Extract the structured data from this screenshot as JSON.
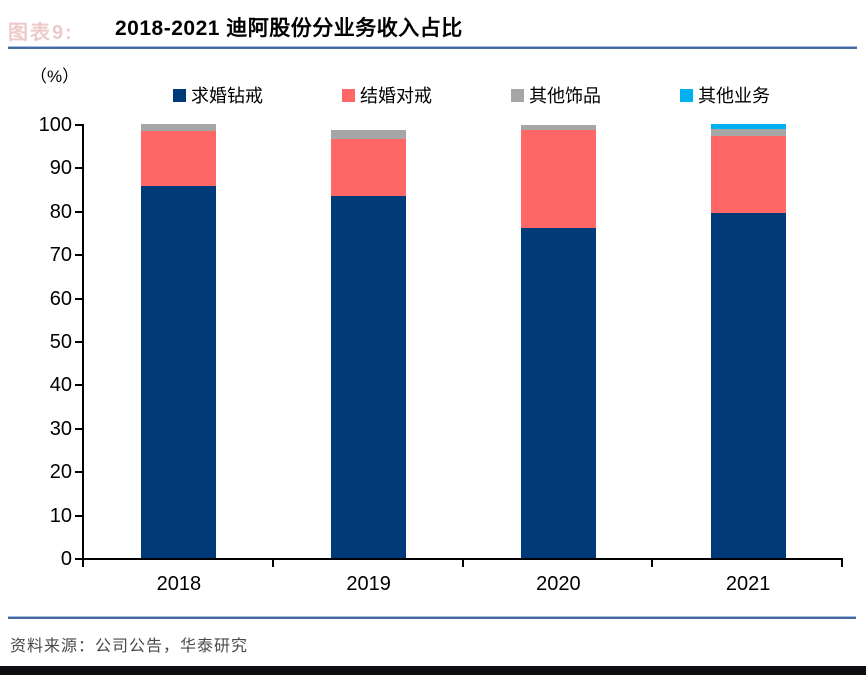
{
  "header": {
    "figure_label": "图表9:",
    "title": "2018-2021 迪阿股份分业务收入占比"
  },
  "chart_data": {
    "type": "bar",
    "stacked": true,
    "title": "2018-2021 迪阿股份分业务收入占比",
    "unit_label": "（%）",
    "xlabel": "",
    "ylabel": "（%）",
    "categories": [
      "2018",
      "2019",
      "2020",
      "2021"
    ],
    "series": [
      {
        "name": "求婚钻戒",
        "color": "#003a78",
        "values": [
          85.7,
          83.4,
          76.1,
          79.4
        ]
      },
      {
        "name": "结婚对戒",
        "color": "#ff6666",
        "values": [
          12.7,
          13.2,
          22.6,
          17.8
        ]
      },
      {
        "name": "其他饰品",
        "color": "#a6a6a6",
        "values": [
          1.6,
          2.0,
          1.0,
          1.7
        ]
      },
      {
        "name": "其他业务",
        "color": "#00b0f0",
        "values": [
          0.0,
          0.0,
          0.0,
          1.1
        ]
      }
    ],
    "ylim": [
      0,
      100
    ],
    "yticks": [
      0,
      10,
      20,
      30,
      40,
      50,
      60,
      70,
      80,
      90,
      100
    ],
    "grid": false,
    "legend_position": "top"
  },
  "footer": {
    "source": "资料来源：公司公告，华泰研究"
  },
  "colors": {
    "accent_rule": "#47699f",
    "axis": "#000000",
    "footer_band": "#0d0d12",
    "figure_label": "#d98c8c"
  }
}
